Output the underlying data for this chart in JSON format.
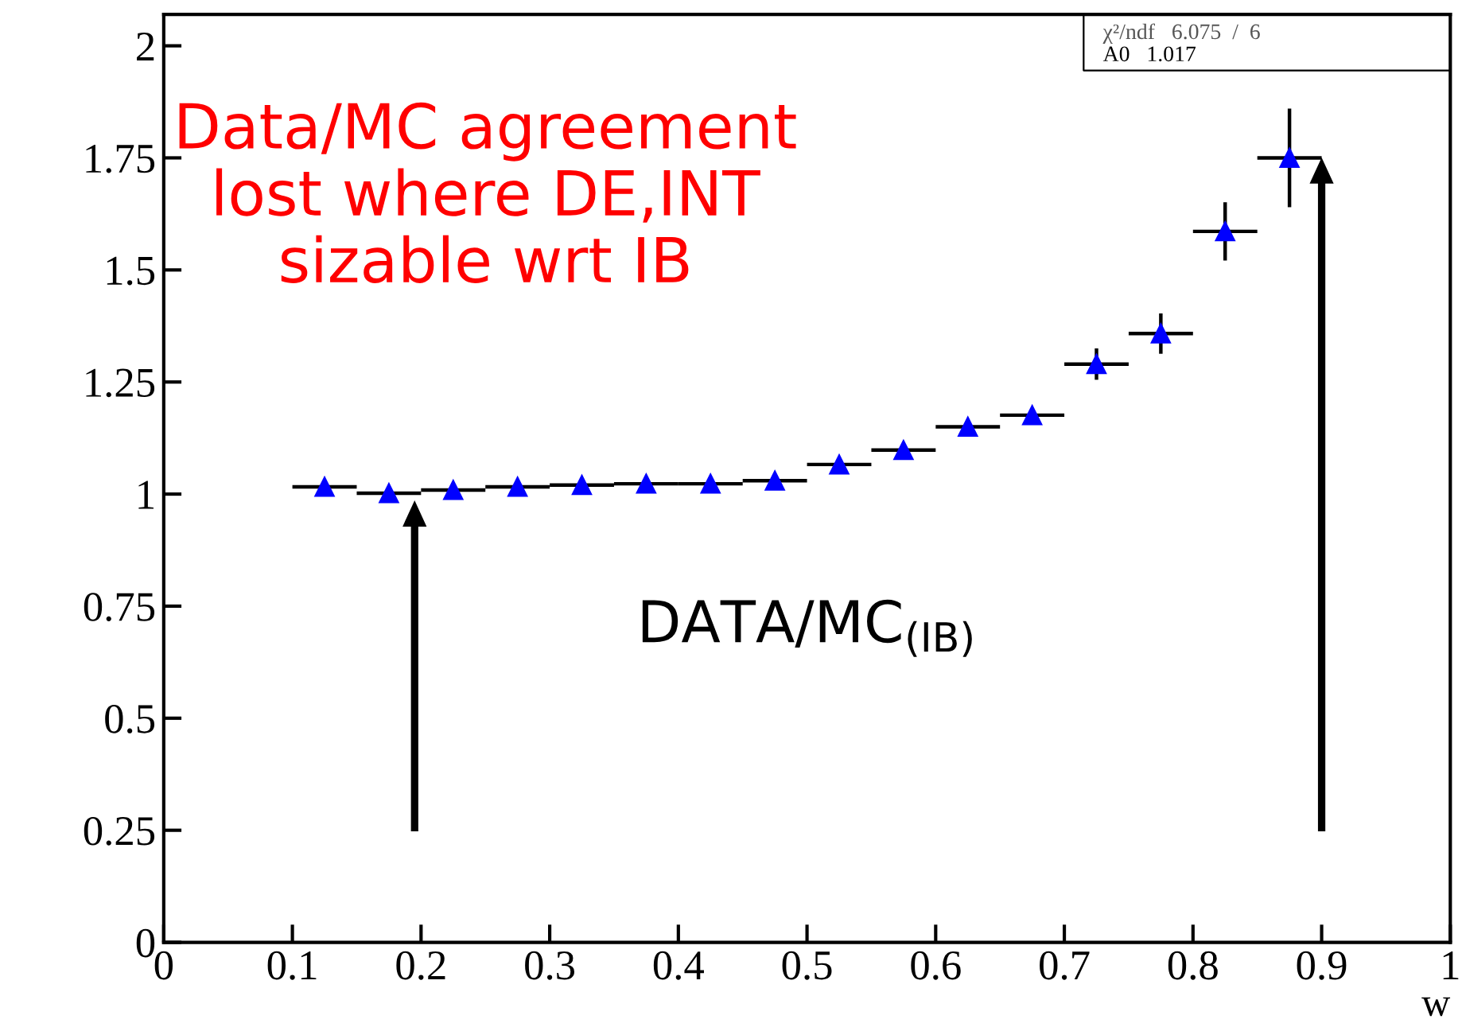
{
  "chart_data": {
    "type": "scatter",
    "xlabel": "w",
    "x": [
      0.125,
      0.175,
      0.225,
      0.275,
      0.325,
      0.375,
      0.425,
      0.475,
      0.525,
      0.575,
      0.625,
      0.675,
      0.725,
      0.775,
      0.825,
      0.875
    ],
    "series": [
      {
        "color": "#0000ff",
        "values": [
          1.016,
          1.002,
          1.009,
          1.016,
          1.02,
          1.023,
          1.023,
          1.03,
          1.066,
          1.098,
          1.15,
          1.176,
          1.29,
          1.358,
          1.586,
          1.75
        ],
        "errors": [
          null,
          null,
          null,
          null,
          null,
          null,
          null,
          null,
          null,
          null,
          null,
          null,
          0.035,
          0.045,
          0.065,
          0.11
        ],
        "xerrors": [
          0.025,
          0.025,
          0.025,
          0.025,
          0.025,
          0.025,
          0.025,
          0.025,
          0.025,
          0.025,
          0.025,
          0.025,
          0.025,
          0.025,
          0.025,
          0.025
        ]
      }
    ],
    "marker": "triangle",
    "xlim": [
      0,
      1
    ],
    "xticks": [
      0,
      0.1,
      0.2,
      0.3,
      0.4,
      0.5,
      0.6,
      0.7,
      0.8,
      0.9,
      1
    ],
    "ylim": [
      0,
      2.07
    ],
    "yticks": [
      0,
      0.25,
      0.5,
      0.75,
      1,
      1.25,
      1.5,
      1.75,
      2
    ],
    "grid": false,
    "annotations": [
      "Data/MC agreement\nlost where DE,INT\nsizable wrt IB",
      "DATA/MC$_{(IB)}$",
      "χ²/ndf   6.075  /  6",
      "A0   1.017"
    ]
  }
}
